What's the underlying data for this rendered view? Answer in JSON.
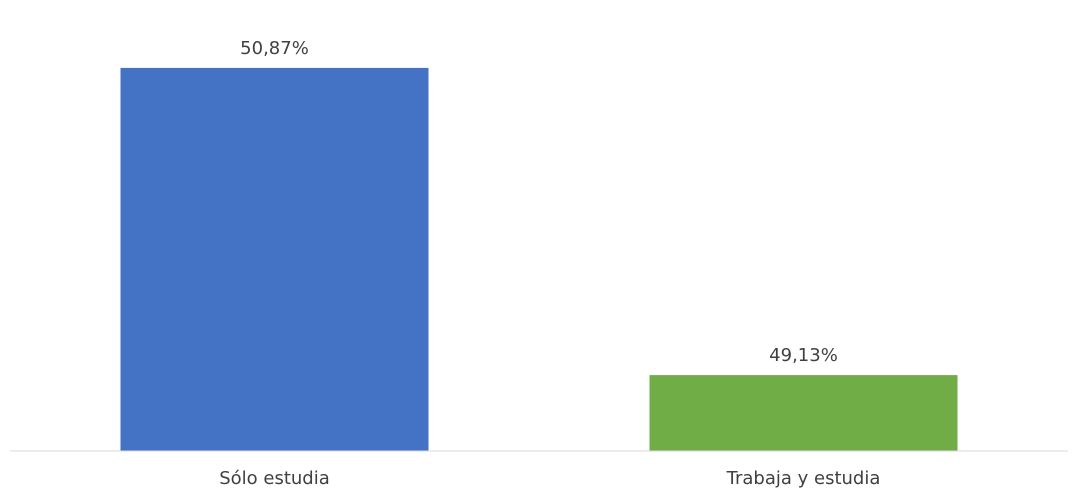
{
  "chart_data": {
    "type": "bar",
    "title": "",
    "xlabel": "",
    "ylabel": "",
    "categories": [
      "Sólo estudia",
      "Trabaja y estudia"
    ],
    "values": [
      50.87,
      49.13
    ],
    "value_labels": [
      "50,87%",
      "49,13%"
    ],
    "colors": [
      "#4472c4",
      "#70ad47"
    ],
    "ylim": [
      48.7,
      51
    ],
    "grid": false,
    "legend": "none"
  }
}
